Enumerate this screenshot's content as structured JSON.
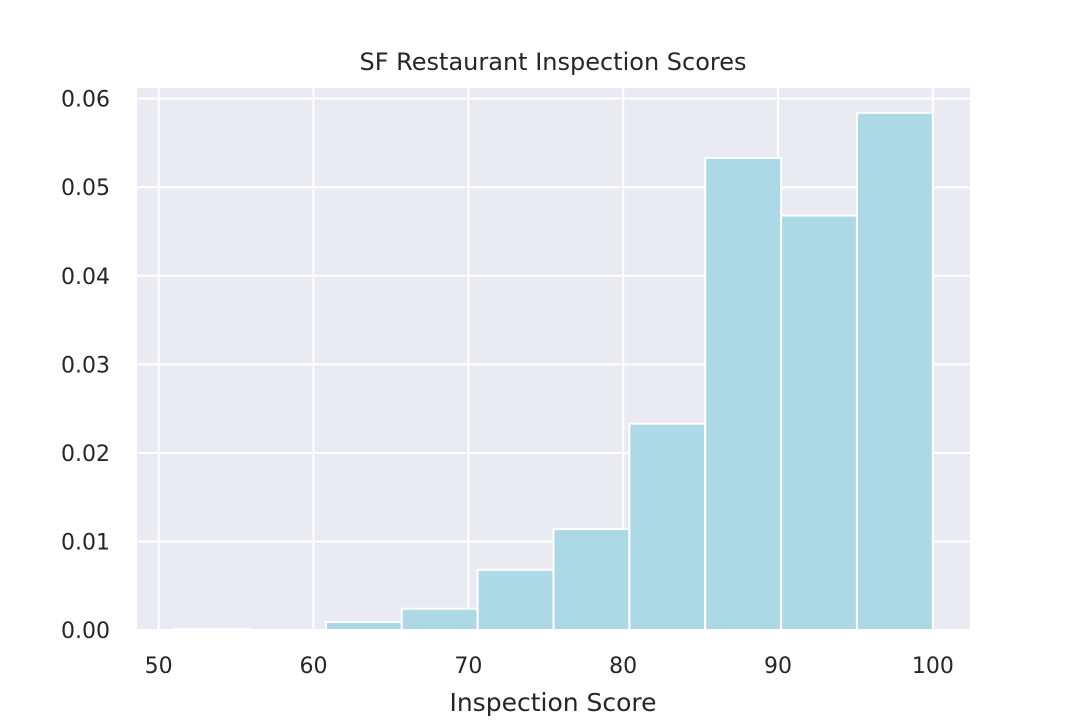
{
  "chart_data": {
    "type": "bar",
    "title": "SF Restaurant Inspection Scores",
    "xlabel": "Inspection Score",
    "ylabel": "",
    "xlim": [
      48.6,
      102.4
    ],
    "ylim": [
      0,
      0.0612
    ],
    "xticks": [
      50,
      60,
      70,
      80,
      90,
      100
    ],
    "yticks": [
      0.0,
      0.01,
      0.02,
      0.03,
      0.04,
      0.05,
      0.06
    ],
    "ytick_labels": [
      "0.00",
      "0.01",
      "0.02",
      "0.03",
      "0.04",
      "0.05",
      "0.06"
    ],
    "grid": true,
    "bar_color": "#add8e6",
    "background_color": "#eaeaf2",
    "bins": [
      {
        "start": 51,
        "end": 55.9,
        "value": 0.0001
      },
      {
        "start": 55.9,
        "end": 60.8,
        "value": 0.0
      },
      {
        "start": 60.8,
        "end": 65.7,
        "value": 0.0009
      },
      {
        "start": 65.7,
        "end": 70.6,
        "value": 0.0024
      },
      {
        "start": 70.6,
        "end": 75.5,
        "value": 0.0068
      },
      {
        "start": 75.5,
        "end": 80.4,
        "value": 0.0114
      },
      {
        "start": 80.4,
        "end": 85.3,
        "value": 0.0233
      },
      {
        "start": 85.3,
        "end": 90.2,
        "value": 0.0533
      },
      {
        "start": 90.2,
        "end": 95.1,
        "value": 0.0468
      },
      {
        "start": 95.1,
        "end": 100,
        "value": 0.0584
      }
    ]
  }
}
